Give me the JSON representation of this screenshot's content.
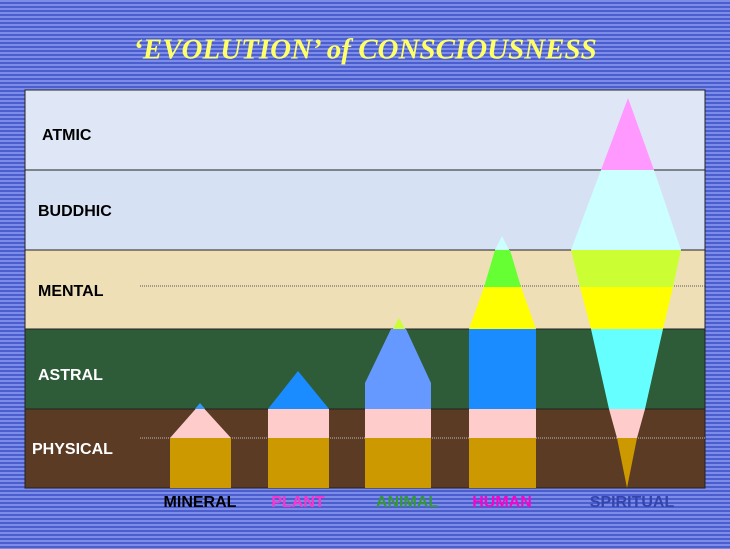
{
  "header": {
    "title": "‘EVOLUTION’ of CONSCIOUSNESS"
  },
  "planes": [
    "ATMIC",
    "BUDDHIC",
    "MENTAL",
    "ASTRAL",
    "PHYSICAL"
  ],
  "kingdoms": [
    "MINERAL",
    "PLANT",
    "ANIMAL",
    "HUMAN",
    "SPIRITUAL"
  ]
}
